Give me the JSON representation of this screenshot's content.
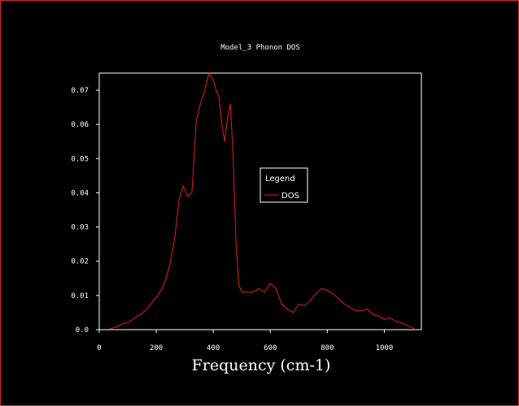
{
  "chart_data": {
    "type": "line",
    "title": "Model_3 Phonon DOS",
    "xlabel": "Frequency (cm-1)",
    "ylabel": "",
    "xlim": [
      0,
      1130
    ],
    "ylim": [
      0,
      0.075
    ],
    "xticks": [
      0,
      200,
      400,
      600,
      800,
      1000
    ],
    "yticks": [
      0.0,
      0.01,
      0.02,
      0.03,
      0.04,
      0.05,
      0.06,
      0.07
    ],
    "ytick_labels": [
      "0.0",
      "0.01",
      "0.02",
      "0.03",
      "0.04",
      "0.05",
      "0.06",
      "0.07"
    ],
    "legend": {
      "title": "Legend",
      "position": "center-right"
    },
    "series": [
      {
        "name": "DOS",
        "color": "#e02020",
        "x": [
          35,
          60,
          80,
          100,
          115,
          130,
          145,
          160,
          175,
          190,
          205,
          220,
          235,
          250,
          265,
          280,
          295,
          310,
          325,
          340,
          355,
          370,
          385,
          400,
          410,
          420,
          430,
          440,
          450,
          460,
          470,
          480,
          490,
          500,
          520,
          540,
          560,
          580,
          600,
          620,
          640,
          660,
          680,
          700,
          720,
          740,
          760,
          780,
          800,
          820,
          840,
          860,
          880,
          900,
          920,
          940,
          960,
          980,
          1000,
          1020,
          1040,
          1060,
          1080,
          1100,
          1110
        ],
        "values": [
          0.0002,
          0.0008,
          0.0017,
          0.0021,
          0.0028,
          0.0038,
          0.0045,
          0.0055,
          0.0068,
          0.0085,
          0.01,
          0.012,
          0.015,
          0.02,
          0.027,
          0.038,
          0.042,
          0.039,
          0.04,
          0.061,
          0.066,
          0.07,
          0.075,
          0.073,
          0.07,
          0.068,
          0.06,
          0.055,
          0.062,
          0.066,
          0.05,
          0.025,
          0.013,
          0.011,
          0.011,
          0.011,
          0.012,
          0.011,
          0.0135,
          0.012,
          0.0075,
          0.006,
          0.005,
          0.0075,
          0.007,
          0.0085,
          0.0105,
          0.012,
          0.0115,
          0.0105,
          0.009,
          0.0075,
          0.0065,
          0.0055,
          0.0055,
          0.006,
          0.0045,
          0.004,
          0.003,
          0.0035,
          0.0025,
          0.002,
          0.0012,
          0.0005,
          0.0
        ]
      }
    ]
  }
}
